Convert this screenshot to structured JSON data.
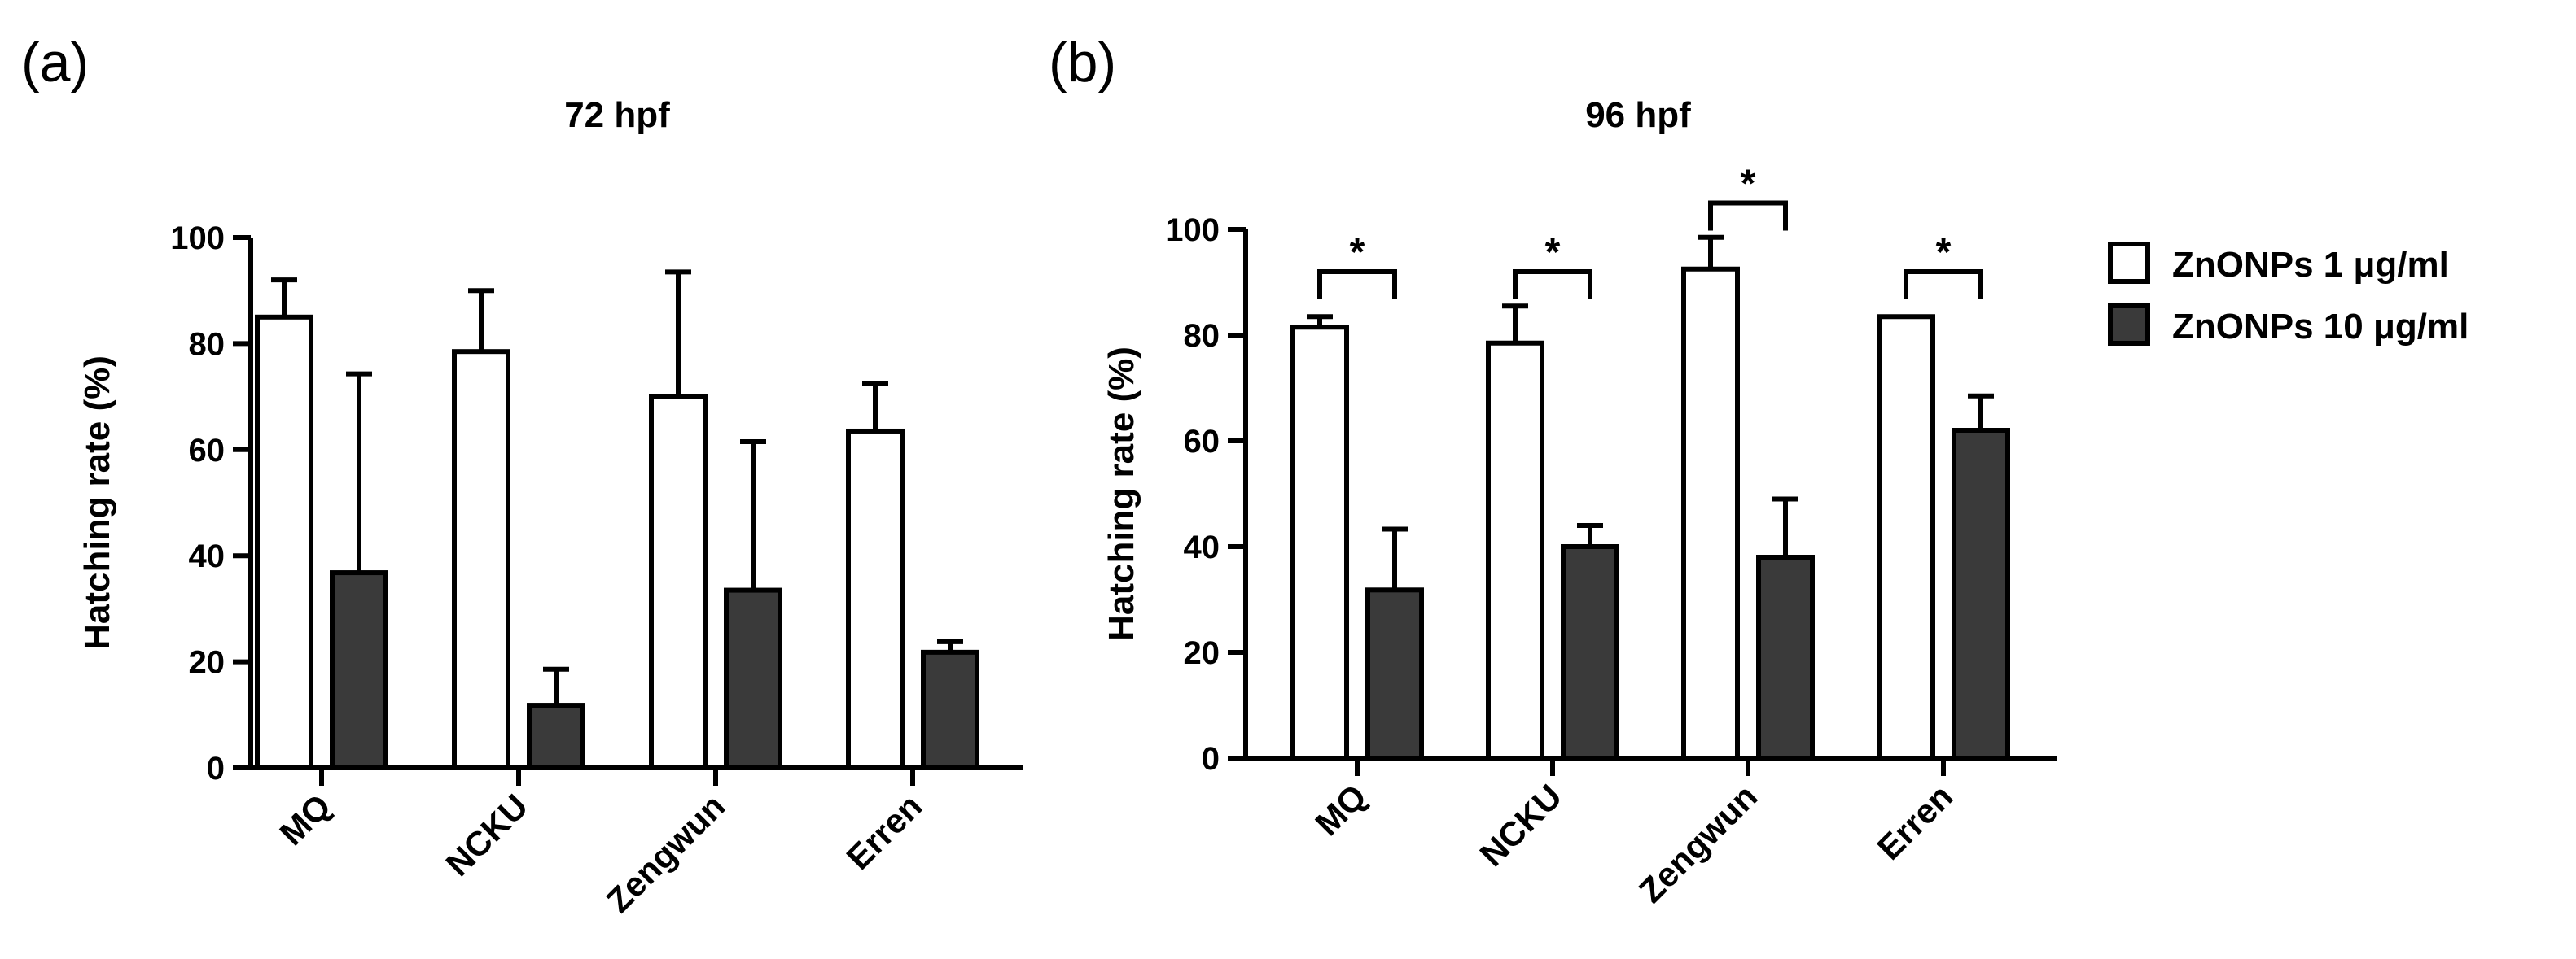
{
  "panels": [
    {
      "letter": "(a)"
    },
    {
      "letter": "(b)"
    }
  ],
  "legend": {
    "series": [
      {
        "name": "ZnONPs 1 μg/ml",
        "fill": "#ffffff"
      },
      {
        "name": "ZnONPs 10 μg/ml",
        "fill": "#3a3a3a"
      }
    ]
  },
  "colors": {
    "axis": "#000000",
    "bar_light": "#ffffff",
    "bar_dark": "#3a3a3a"
  },
  "chart_data": [
    {
      "type": "bar",
      "title": "72 hpf",
      "xlabel": "",
      "ylabel": "Hatching rate (%)",
      "ylim": [
        0,
        100
      ],
      "yticks": [
        0,
        20,
        40,
        60,
        80,
        100
      ],
      "categories": [
        "MQ",
        "NCKU",
        "Zengwun",
        "Erren"
      ],
      "series": [
        {
          "name": "ZnONPs 1 μg/ml",
          "values": [
            85.0,
            78.5,
            70.0,
            63.5
          ],
          "errors": [
            7.0,
            11.5,
            23.5,
            9.0
          ]
        },
        {
          "name": "ZnONPs 10 μg/ml",
          "values": [
            36.8,
            11.8,
            33.5,
            21.8
          ],
          "errors": [
            37.5,
            6.8,
            28.0,
            2.0
          ]
        }
      ],
      "significance": []
    },
    {
      "type": "bar",
      "title": "96 hpf",
      "xlabel": "",
      "ylabel": "Hatching rate (%)",
      "ylim": [
        0,
        100
      ],
      "yticks": [
        0,
        20,
        40,
        60,
        80,
        100
      ],
      "categories": [
        "MQ",
        "NCKU",
        "Zengwun",
        "Erren"
      ],
      "series": [
        {
          "name": "ZnONPs 1 μg/ml",
          "values": [
            81.5,
            78.5,
            92.5,
            83.5
          ],
          "errors": [
            2.0,
            7.0,
            6.0,
            0
          ]
        },
        {
          "name": "ZnONPs 10 μg/ml",
          "values": [
            31.8,
            40.0,
            38.0,
            62.0
          ],
          "errors": [
            11.5,
            4.0,
            11.0,
            6.5
          ]
        }
      ],
      "significance": [
        {
          "category": "MQ",
          "label": "*",
          "y": 92
        },
        {
          "category": "NCKU",
          "label": "*",
          "y": 92
        },
        {
          "category": "Zengwun",
          "label": "*",
          "y": 105
        },
        {
          "category": "Erren",
          "label": "*",
          "y": 92
        }
      ]
    }
  ]
}
